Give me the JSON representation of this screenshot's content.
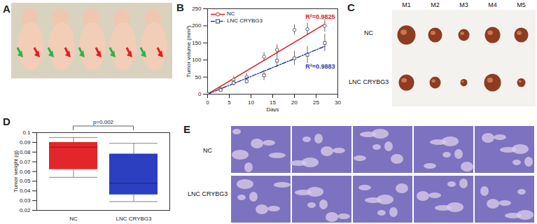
{
  "chart_data": [
    {
      "panel": "B",
      "type": "line",
      "x_label": "Days",
      "y_label": "Tumor volume (mm³)",
      "xlim": [
        0,
        30
      ],
      "xticks": [
        0,
        5,
        10,
        15,
        20,
        25,
        30
      ],
      "ylim": [
        0,
        250
      ],
      "yticks": [
        0,
        50,
        100,
        150,
        200,
        250
      ],
      "legend": "top-left",
      "x": [
        0,
        3,
        6,
        9,
        13,
        16,
        20,
        23,
        27
      ],
      "series": [
        {
          "name": "NC",
          "color": "#e02020",
          "marker": "circle",
          "line_style": "solid",
          "values": [
            0,
            15,
            42,
            50,
            110,
            130,
            188,
            190,
            200
          ],
          "errors": [
            3,
            5,
            10,
            10,
            12,
            15,
            15,
            18,
            18
          ],
          "fit_x": [
            0,
            27
          ],
          "fit_values": [
            0,
            205
          ],
          "annotation": "R²=0.9825"
        },
        {
          "name": "LNC CRYBG3",
          "color": "#2a3db0",
          "marker": "square",
          "line_style": "dashdot",
          "values": [
            0,
            12,
            33,
            38,
            55,
            98,
            105,
            115,
            150
          ],
          "errors": [
            2,
            5,
            8,
            8,
            15,
            20,
            20,
            25,
            25
          ],
          "fit_x": [
            0,
            27
          ],
          "fit_values": [
            0,
            140
          ],
          "annotation": "R²=0.9883"
        }
      ]
    },
    {
      "panel": "D",
      "type": "box",
      "y_label": "Tumor weight (g)",
      "categories": [
        "NC",
        "LNC CRYBG3"
      ],
      "colors": [
        "#e3262c",
        "#2b3fc0"
      ],
      "min": [
        0.054,
        0.029
      ],
      "q1": [
        0.062,
        0.036
      ],
      "median": [
        0.085,
        0.048
      ],
      "q3": [
        0.09,
        0.078
      ],
      "max": [
        0.095,
        0.089
      ],
      "ylim": [
        0.02,
        0.1
      ],
      "yticks": [
        0.02,
        0.03,
        0.04,
        0.05,
        0.06,
        0.07,
        0.08,
        0.09,
        0.1
      ],
      "annotation": "p=0.002"
    }
  ],
  "images": [
    {
      "panel": "A"
    },
    {
      "panel": "C",
      "columns": [
        "M1",
        "M2",
        "M3",
        "M4",
        "M5"
      ],
      "rows": [
        "NC",
        "LNC CRYBG3"
      ]
    },
    {
      "panel": "E",
      "rows": [
        "NC",
        "LNC CRYBG3"
      ]
    }
  ]
}
